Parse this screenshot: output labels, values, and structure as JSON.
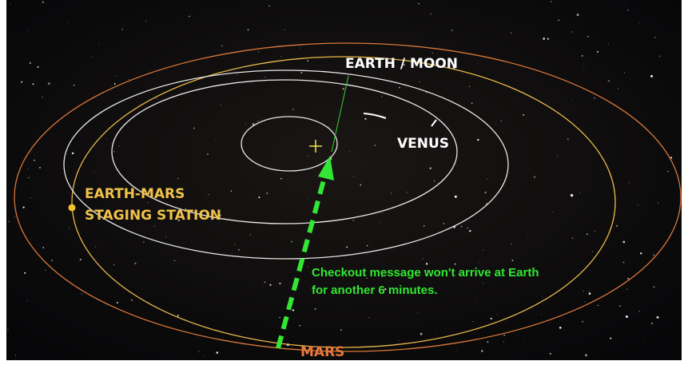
{
  "labels": {
    "earth_moon": "EARTH / MOON",
    "venus": "VENUS",
    "staging_station": [
      "EARTH-MARS",
      "STAGING STATION"
    ],
    "mars": "MARS"
  },
  "message": [
    "Checkout message won't arrive at Earth",
    "for another 6 minutes."
  ]
}
